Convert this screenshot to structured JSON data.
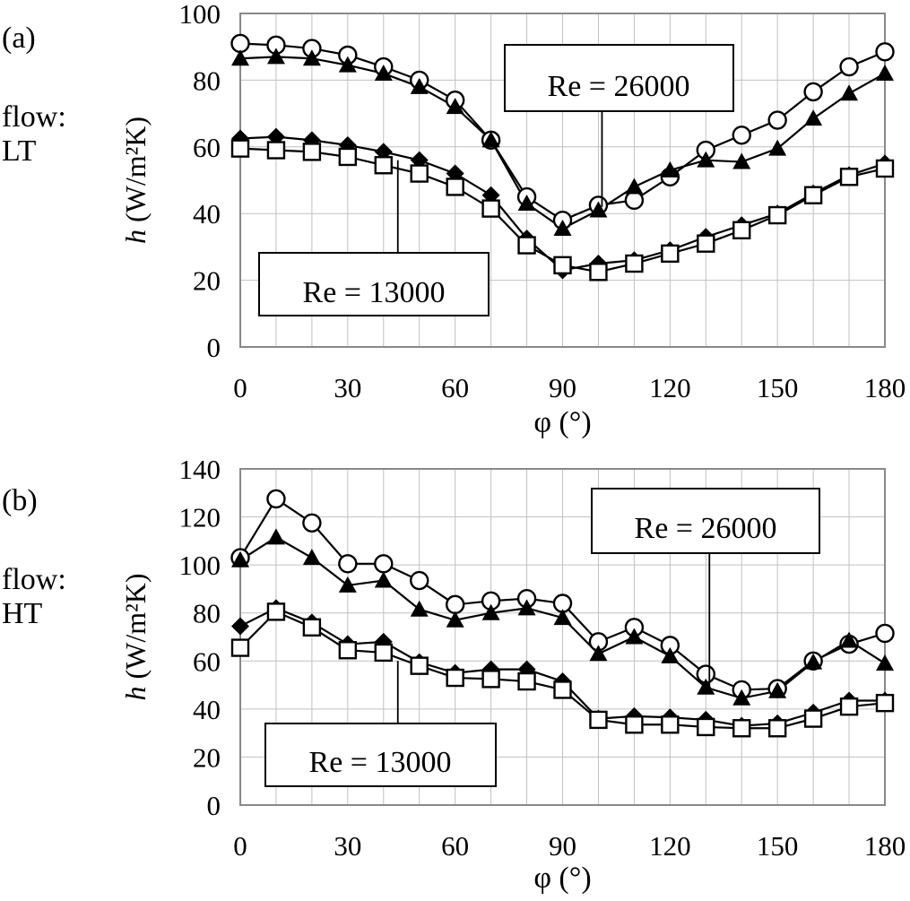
{
  "figure": {
    "panel_a": {
      "label": "(a)",
      "flow_label": "flow:",
      "flow_type": "LT"
    },
    "panel_b": {
      "label": "(b)",
      "flow_label": "flow:",
      "flow_type": "HT"
    },
    "colors": {
      "grid": "#c0c0c0",
      "frame": "#888888",
      "series": "#000000"
    }
  },
  "chart_data": [
    {
      "type": "line",
      "panel": "a",
      "title": "",
      "xlabel": "φ (°)",
      "ylabel_italic": "h",
      "ylabel_rest": " (W/m²K)",
      "xlim": [
        0,
        180
      ],
      "ylim": [
        0,
        100
      ],
      "xticks": [
        0,
        30,
        60,
        90,
        120,
        150,
        180
      ],
      "yticks": [
        0,
        20,
        40,
        60,
        80,
        100
      ],
      "grid": true,
      "x": [
        0,
        10,
        20,
        30,
        40,
        50,
        60,
        70,
        80,
        90,
        100,
        110,
        120,
        130,
        140,
        150,
        160,
        170,
        180
      ],
      "series": [
        {
          "name": "Re = 26000 (open circle)",
          "marker": "circle-open",
          "values": [
            91,
            90.5,
            89.5,
            87.5,
            84,
            80,
            74,
            62,
            45,
            38,
            42.5,
            44,
            51,
            59,
            63.5,
            68,
            76.5,
            84,
            88.5
          ]
        },
        {
          "name": "Re = 26000 (filled triangle)",
          "marker": "triangle-filled",
          "values": [
            86.5,
            87,
            86.5,
            84.5,
            82,
            78,
            72,
            62,
            43,
            35.5,
            41,
            48,
            53,
            56,
            55.5,
            59.5,
            68.5,
            76,
            82
          ]
        },
        {
          "name": "Re = 13000 (filled diamond)",
          "marker": "diamond-filled",
          "values": [
            62.5,
            63,
            62,
            60.5,
            58.5,
            56,
            52,
            45.5,
            32.5,
            23,
            25,
            26,
            29,
            33,
            36.5,
            40,
            46,
            51.5,
            55
          ]
        },
        {
          "name": "Re = 13000 (open square)",
          "marker": "square-open",
          "values": [
            59.5,
            59,
            58.5,
            57,
            54.5,
            52,
            48,
            41.5,
            30.5,
            24.5,
            22.5,
            25,
            28,
            31,
            35,
            39.5,
            45.5,
            51,
            53.5
          ]
        }
      ],
      "annotations": [
        {
          "text": "Re = 26000",
          "points_to": [
            101,
            42
          ]
        },
        {
          "text": "Re = 13000",
          "points_to": [
            44,
            56
          ]
        }
      ]
    },
    {
      "type": "line",
      "panel": "b",
      "title": "",
      "xlabel": "φ (°)",
      "ylabel_italic": "h",
      "ylabel_rest": " (W/m²K)",
      "xlim": [
        0,
        180
      ],
      "ylim": [
        0,
        140
      ],
      "xticks": [
        0,
        30,
        60,
        90,
        120,
        150,
        180
      ],
      "yticks": [
        0,
        20,
        40,
        60,
        80,
        100,
        120,
        140
      ],
      "grid": true,
      "x": [
        0,
        10,
        20,
        30,
        40,
        50,
        60,
        70,
        80,
        90,
        100,
        110,
        120,
        130,
        140,
        150,
        160,
        170,
        180
      ],
      "series": [
        {
          "name": "Re = 26000 (open circle)",
          "marker": "circle-open",
          "values": [
            103,
            127.5,
            117.5,
            100.5,
            100.5,
            93.5,
            83.5,
            85,
            86,
            84,
            68,
            74,
            66.5,
            54.5,
            48,
            48.5,
            60,
            67,
            71.5
          ]
        },
        {
          "name": "Re = 26000 (filled triangle)",
          "marker": "triangle-filled",
          "values": [
            102,
            111.5,
            103,
            91.5,
            93.5,
            81.5,
            77,
            80,
            82,
            78,
            63,
            70,
            62,
            49,
            44.5,
            47.5,
            59.5,
            68.5,
            59
          ]
        },
        {
          "name": "Re = 13000 (filled diamond)",
          "marker": "diamond-filled",
          "values": [
            74.5,
            82,
            76,
            67,
            68,
            59.5,
            55,
            56.5,
            56.5,
            51.5,
            36,
            37,
            36.5,
            35.5,
            33,
            34,
            38.5,
            43.5,
            43.5
          ]
        },
        {
          "name": "Re = 13000 (open square)",
          "marker": "square-open",
          "values": [
            65.5,
            80.5,
            74,
            64.5,
            63.5,
            58,
            53,
            52.5,
            51.5,
            48,
            35.5,
            33.5,
            33.5,
            32.5,
            32,
            32,
            36,
            41,
            42.5
          ]
        }
      ],
      "annotations": [
        {
          "text": "Re = 26000",
          "points_to": [
            131,
            49
          ]
        },
        {
          "text": "Re = 13000",
          "points_to": [
            44,
            60
          ]
        }
      ]
    }
  ]
}
